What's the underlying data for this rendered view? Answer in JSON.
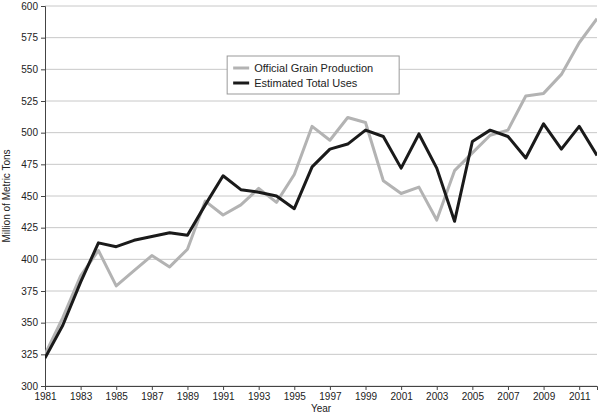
{
  "chart_data": {
    "type": "line",
    "x_label": "Year",
    "y_label": "Million of Metric Tons",
    "x": [
      1981,
      1982,
      1983,
      1984,
      1985,
      1986,
      1987,
      1988,
      1989,
      1990,
      1991,
      1992,
      1993,
      1994,
      1995,
      1996,
      1997,
      1998,
      1999,
      2000,
      2001,
      2002,
      2003,
      2004,
      2005,
      2006,
      2007,
      2008,
      2009,
      2010,
      2011,
      2012
    ],
    "series": [
      {
        "name": "Official Grain Production",
        "color": "#b3b3b3",
        "values": [
          325,
          354,
          387,
          407,
          379,
          391,
          403,
          394,
          408,
          446,
          435,
          443,
          456,
          445,
          467,
          505,
          494,
          512,
          508,
          462,
          452,
          457,
          431,
          470,
          484,
          498,
          502,
          529,
          531,
          546,
          571,
          590
        ]
      },
      {
        "name": "Estimated Total Uses",
        "color": "#1a1a1a",
        "values": [
          322,
          348,
          382,
          413,
          410,
          415,
          418,
          421,
          419,
          443,
          466,
          455,
          453,
          450,
          440,
          473,
          487,
          491,
          502,
          497,
          472,
          499,
          472,
          430,
          493,
          502,
          497,
          480,
          507,
          487,
          505,
          482
        ]
      }
    ],
    "xlim": [
      1981,
      2012
    ],
    "xticks": [
      1981,
      1983,
      1985,
      1987,
      1989,
      1991,
      1993,
      1995,
      1997,
      1999,
      2001,
      2003,
      2005,
      2007,
      2009,
      2011
    ],
    "ylim": [
      300,
      600
    ],
    "yticks": [
      300,
      325,
      350,
      375,
      400,
      425,
      450,
      475,
      500,
      525,
      550,
      575,
      600
    ],
    "grid": true,
    "legend": "top"
  }
}
